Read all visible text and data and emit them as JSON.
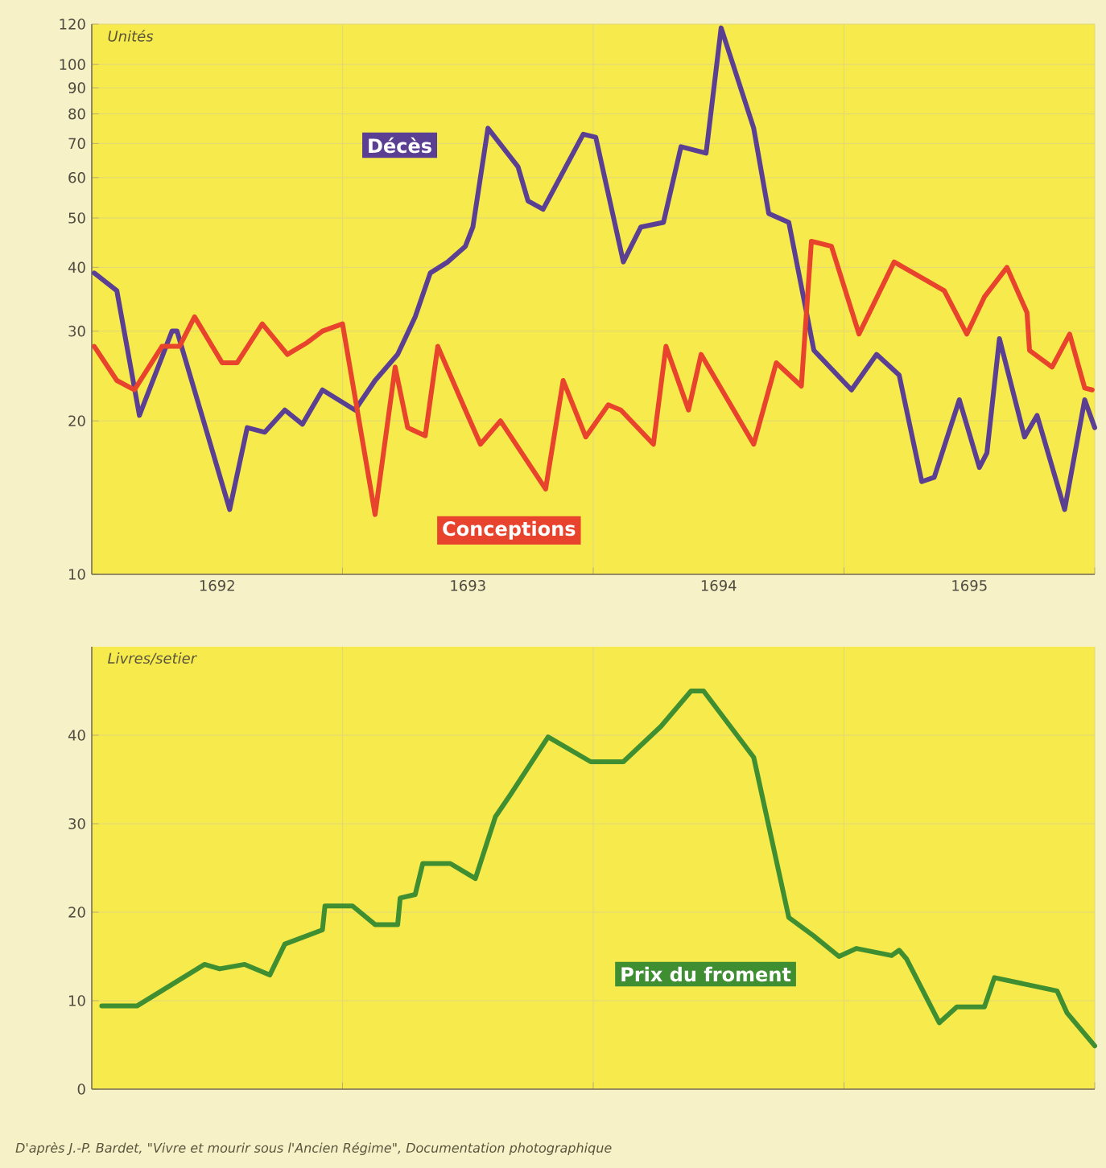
{
  "chart_data": [
    {
      "type": "line",
      "ylabel": "Unités",
      "log": true,
      "grid": true,
      "xlim": [
        1692,
        1696
      ],
      "ylim": [
        10,
        120
      ],
      "xticks": [
        {
          "value": 1692.5,
          "label": "1692"
        },
        {
          "value": 1693,
          "label": null
        },
        {
          "value": 1693.5,
          "label": "1693"
        },
        {
          "value": 1694,
          "label": null
        },
        {
          "value": 1694.5,
          "label": "1694"
        },
        {
          "value": 1695,
          "label": null
        },
        {
          "value": 1695.5,
          "label": "1695"
        },
        {
          "value": 1696,
          "label": null
        }
      ],
      "yticks": [
        10,
        20,
        30,
        40,
        50,
        60,
        70,
        80,
        90,
        100,
        120
      ],
      "series": [
        {
          "name": "Décès",
          "color": "#5b3f93",
          "x": [
            1692.01,
            1692.1,
            1692.19,
            1692.32,
            1692.34,
            1692.55,
            1692.62,
            1692.69,
            1692.77,
            1692.84,
            1692.92,
            1693.05,
            1693.13,
            1693.22,
            1693.29,
            1693.35,
            1693.42,
            1693.49,
            1693.52,
            1693.58,
            1693.7,
            1693.74,
            1693.8,
            1693.96,
            1694.01,
            1694.12,
            1694.19,
            1694.28,
            1694.35,
            1694.45,
            1694.51,
            1694.64,
            1694.7,
            1694.78,
            1694.88,
            1695.03,
            1695.13,
            1695.22,
            1695.31,
            1695.36,
            1695.46,
            1695.54,
            1695.57,
            1695.62,
            1695.72,
            1695.77,
            1695.88,
            1695.96,
            1696.0
          ],
          "values": [
            39,
            36,
            20.5,
            30,
            30,
            13.4,
            19.4,
            19,
            21,
            19.7,
            23,
            21,
            24,
            27,
            32,
            39,
            41,
            44,
            48,
            75,
            63,
            54,
            52,
            73,
            72,
            41,
            48,
            49,
            69,
            67,
            118,
            75,
            51,
            49,
            27.5,
            23,
            27,
            24.6,
            15.2,
            15.5,
            22,
            16.2,
            17.3,
            29,
            18.6,
            20.5,
            13.4,
            22,
            19.4
          ]
        },
        {
          "name": "Conceptions",
          "color": "#e8432c",
          "x": [
            1692.01,
            1692.1,
            1692.17,
            1692.28,
            1692.35,
            1692.41,
            1692.52,
            1692.58,
            1692.68,
            1692.78,
            1692.86,
            1692.92,
            1693.0,
            1693.13,
            1693.21,
            1693.26,
            1693.33,
            1693.38,
            1693.49,
            1693.55,
            1693.63,
            1693.81,
            1693.88,
            1693.97,
            1694.06,
            1694.11,
            1694.24,
            1694.29,
            1694.38,
            1694.43,
            1694.64,
            1694.73,
            1694.83,
            1694.87,
            1694.95,
            1695.06,
            1695.2,
            1695.4,
            1695.49,
            1695.56,
            1695.65,
            1695.73,
            1695.74,
            1695.83,
            1695.9,
            1695.96,
            1695.99
          ],
          "values": [
            28,
            24,
            23,
            28,
            28,
            32,
            26,
            26,
            31,
            27,
            28.5,
            30,
            31,
            13.1,
            25.5,
            19.4,
            18.7,
            28,
            21,
            18,
            20,
            14.7,
            24,
            18.6,
            21.5,
            21,
            18,
            28,
            21,
            27,
            18,
            26,
            23.4,
            45,
            44,
            29.6,
            41,
            36,
            29.6,
            35,
            40,
            32.6,
            27.5,
            25.5,
            29.6,
            23.2,
            23
          ]
        }
      ],
      "annotations": [
        "D'après J.-P. Bardet, \"Vivre et mourir sous l'Ancien Régime\", Documentation photographique"
      ]
    },
    {
      "type": "line",
      "ylabel": "Livres/setier",
      "grid": true,
      "tick_labels": "y",
      "xlim": [
        1692,
        1696
      ],
      "ylim": [
        0,
        50
      ],
      "xticks": [
        {
          "value": 1693,
          "label": null
        },
        {
          "value": 1694,
          "label": null
        },
        {
          "value": 1695,
          "label": null
        },
        {
          "value": 1696,
          "label": null
        }
      ],
      "yticks": [
        0,
        10,
        20,
        30,
        40
      ],
      "series": [
        {
          "name": "Prix du froment",
          "color": "#3f8f32",
          "x": [
            1692.04,
            1692.18,
            1692.45,
            1692.51,
            1692.61,
            1692.71,
            1692.77,
            1692.92,
            1692.93,
            1693.04,
            1693.13,
            1693.22,
            1693.23,
            1693.29,
            1693.32,
            1693.43,
            1693.53,
            1693.61,
            1693.67,
            1693.82,
            1693.99,
            1694.12,
            1694.27,
            1694.39,
            1694.44,
            1694.64,
            1694.78,
            1694.88,
            1694.98,
            1695.05,
            1695.19,
            1695.22,
            1695.25,
            1695.38,
            1695.45,
            1695.56,
            1695.6,
            1695.85,
            1695.89,
            1696.0
          ],
          "values": [
            9.4,
            9.4,
            14.1,
            13.6,
            14.1,
            12.9,
            16.4,
            18,
            20.7,
            20.7,
            18.6,
            18.6,
            21.6,
            22,
            25.5,
            25.5,
            23.8,
            30.8,
            33.3,
            39.8,
            37,
            37,
            41,
            45,
            45,
            37.5,
            19.4,
            17.3,
            15,
            15.9,
            15.1,
            15.7,
            14.7,
            7.5,
            9.3,
            9.3,
            12.6,
            11.1,
            8.6,
            4.9
          ]
        }
      ]
    }
  ]
}
